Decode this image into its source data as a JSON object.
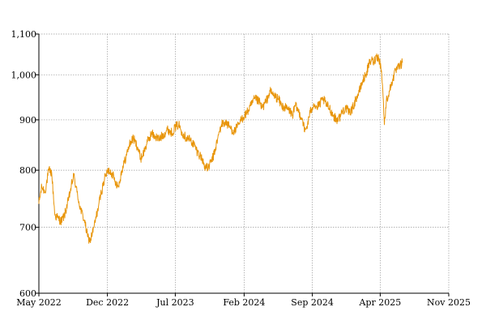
{
  "chart_data": {
    "type": "line",
    "title": "",
    "xlabel": "",
    "ylabel": "",
    "y_scale": "log",
    "ylim": [
      600,
      1100
    ],
    "xlim": [
      "2022-05-01",
      "2025-11-01"
    ],
    "grid": true,
    "x_ticks": [
      {
        "date": "2022-05-01",
        "label": "May 2022"
      },
      {
        "date": "2022-12-01",
        "label": "Dec 2022"
      },
      {
        "date": "2023-07-01",
        "label": "Jul 2023"
      },
      {
        "date": "2024-02-01",
        "label": "Feb 2024"
      },
      {
        "date": "2024-09-01",
        "label": "Sep 2024"
      },
      {
        "date": "2025-04-01",
        "label": "Apr 2025"
      },
      {
        "date": "2025-11-01",
        "label": "Nov 2025"
      }
    ],
    "y_ticks": [
      {
        "value": 600,
        "label": "600"
      },
      {
        "value": 700,
        "label": "700"
      },
      {
        "value": 800,
        "label": "800"
      },
      {
        "value": 900,
        "label": "900"
      },
      {
        "value": 1000,
        "label": "1,000"
      },
      {
        "value": 1100,
        "label": "1,100"
      }
    ],
    "series": [
      {
        "color": "#e8950a",
        "points": [
          [
            "2022-05-01",
            740
          ],
          [
            "2022-05-10",
            770
          ],
          [
            "2022-05-20",
            760
          ],
          [
            "2022-06-01",
            800
          ],
          [
            "2022-06-10",
            795
          ],
          [
            "2022-06-20",
            720
          ],
          [
            "2022-06-30",
            715
          ],
          [
            "2022-07-10",
            710
          ],
          [
            "2022-07-20",
            720
          ],
          [
            "2022-08-01",
            745
          ],
          [
            "2022-08-10",
            770
          ],
          [
            "2022-08-18",
            790
          ],
          [
            "2022-08-28",
            760
          ],
          [
            "2022-09-08",
            730
          ],
          [
            "2022-09-20",
            712
          ],
          [
            "2022-09-30",
            685
          ],
          [
            "2022-10-08",
            678
          ],
          [
            "2022-10-20",
            700
          ],
          [
            "2022-11-01",
            730
          ],
          [
            "2022-11-12",
            760
          ],
          [
            "2022-11-25",
            790
          ],
          [
            "2022-12-05",
            800
          ],
          [
            "2022-12-15",
            795
          ],
          [
            "2022-12-25",
            780
          ],
          [
            "2023-01-05",
            770
          ],
          [
            "2023-01-15",
            800
          ],
          [
            "2023-01-28",
            825
          ],
          [
            "2023-02-08",
            850
          ],
          [
            "2023-02-20",
            862
          ],
          [
            "2023-03-05",
            845
          ],
          [
            "2023-03-15",
            822
          ],
          [
            "2023-03-25",
            835
          ],
          [
            "2023-04-05",
            855
          ],
          [
            "2023-04-18",
            872
          ],
          [
            "2023-05-01",
            865
          ],
          [
            "2023-05-12",
            860
          ],
          [
            "2023-05-25",
            870
          ],
          [
            "2023-06-08",
            880
          ],
          [
            "2023-06-20",
            873
          ],
          [
            "2023-07-01",
            885
          ],
          [
            "2023-07-12",
            890
          ],
          [
            "2023-07-22",
            875
          ],
          [
            "2023-08-01",
            865
          ],
          [
            "2023-08-15",
            860
          ],
          [
            "2023-08-28",
            850
          ],
          [
            "2023-09-08",
            835
          ],
          [
            "2023-09-20",
            825
          ],
          [
            "2023-10-01",
            808
          ],
          [
            "2023-10-10",
            803
          ],
          [
            "2023-10-20",
            815
          ],
          [
            "2023-10-30",
            830
          ],
          [
            "2023-11-10",
            860
          ],
          [
            "2023-11-22",
            890
          ],
          [
            "2023-12-05",
            895
          ],
          [
            "2023-12-18",
            885
          ],
          [
            "2024-01-01",
            875
          ],
          [
            "2024-01-15",
            890
          ],
          [
            "2024-01-28",
            905
          ],
          [
            "2024-02-10",
            915
          ],
          [
            "2024-02-22",
            930
          ],
          [
            "2024-03-05",
            945
          ],
          [
            "2024-03-18",
            940
          ],
          [
            "2024-03-28",
            925
          ],
          [
            "2024-04-10",
            940
          ],
          [
            "2024-04-22",
            962
          ],
          [
            "2024-05-05",
            952
          ],
          [
            "2024-05-18",
            945
          ],
          [
            "2024-05-28",
            930
          ],
          [
            "2024-06-10",
            925
          ],
          [
            "2024-06-22",
            920
          ],
          [
            "2024-07-01",
            910
          ],
          [
            "2024-07-10",
            930
          ],
          [
            "2024-07-22",
            915
          ],
          [
            "2024-08-02",
            900
          ],
          [
            "2024-08-08",
            875
          ],
          [
            "2024-08-15",
            885
          ],
          [
            "2024-08-25",
            915
          ],
          [
            "2024-09-05",
            935
          ],
          [
            "2024-09-15",
            925
          ],
          [
            "2024-09-25",
            935
          ],
          [
            "2024-10-05",
            945
          ],
          [
            "2024-10-15",
            932
          ],
          [
            "2024-10-25",
            925
          ],
          [
            "2024-11-05",
            910
          ],
          [
            "2024-11-15",
            900
          ],
          [
            "2024-11-25",
            905
          ],
          [
            "2024-12-05",
            920
          ],
          [
            "2024-12-15",
            925
          ],
          [
            "2024-12-25",
            915
          ],
          [
            "2025-01-05",
            925
          ],
          [
            "2025-01-15",
            945
          ],
          [
            "2025-01-25",
            960
          ],
          [
            "2025-02-05",
            985
          ],
          [
            "2025-02-15",
            1000
          ],
          [
            "2025-02-25",
            1025
          ],
          [
            "2025-03-05",
            1035
          ],
          [
            "2025-03-12",
            1030
          ],
          [
            "2025-03-20",
            1045
          ],
          [
            "2025-03-28",
            1040
          ],
          [
            "2025-04-05",
            1010
          ],
          [
            "2025-04-10",
            950
          ],
          [
            "2025-04-14",
            890
          ],
          [
            "2025-04-20",
            940
          ],
          [
            "2025-05-01",
            965
          ],
          [
            "2025-05-10",
            990
          ],
          [
            "2025-05-20",
            1010
          ],
          [
            "2025-06-01",
            1020
          ],
          [
            "2025-06-10",
            1030
          ]
        ]
      }
    ]
  }
}
